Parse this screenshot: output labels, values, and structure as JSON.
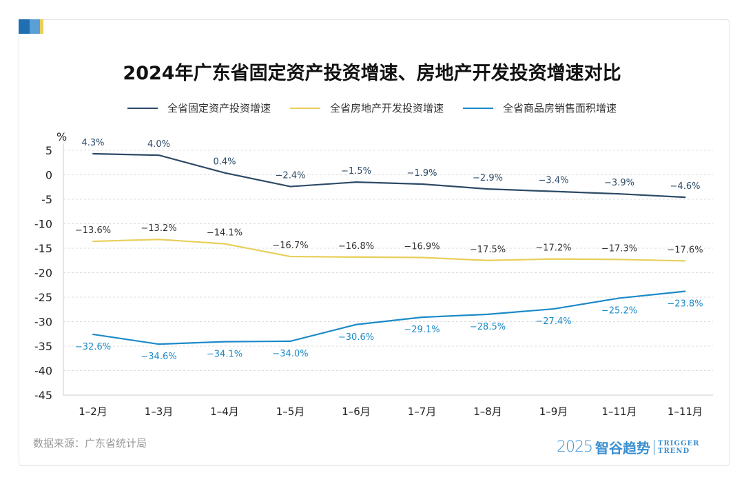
{
  "chart_data": {
    "type": "line",
    "title": "2024年广东省固定资产投资增速、房地产开发投资增速对比",
    "ylabel": "%",
    "xlabel": "",
    "ylim": [
      -45,
      5
    ],
    "yticks": [
      5,
      0,
      -5,
      -10,
      -15,
      -20,
      -25,
      -30,
      -35,
      -40,
      -45
    ],
    "grid": true,
    "legend_position": "top",
    "categories": [
      "1–2月",
      "1–3月",
      "1–4月",
      "1–5月",
      "1–6月",
      "1–7月",
      "1–8月",
      "1–9月",
      "1–11月",
      "1–11月"
    ],
    "series": [
      {
        "name": "全省固定资产投资增速",
        "color": "#2c4a66",
        "label_color": "#2c4a66",
        "values": [
          4.3,
          4.0,
          0.4,
          -2.4,
          -1.5,
          -1.9,
          -2.9,
          -3.4,
          -3.9,
          -4.6
        ],
        "labels": [
          "4.3%",
          "4.0%",
          "0.4%",
          "−2.4%",
          "−1.5%",
          "−1.9%",
          "−2.9%",
          "−3.4%",
          "−3.9%",
          "−4.6%"
        ]
      },
      {
        "name": "全省房地产开发投资增速",
        "color": "#e8cf5a",
        "label_color": "#333333",
        "values": [
          -13.6,
          -13.2,
          -14.1,
          -16.7,
          -16.8,
          -16.9,
          -17.5,
          -17.2,
          -17.3,
          -17.6
        ],
        "labels": [
          "−13.6%",
          "−13.2%",
          "−14.1%",
          "−16.7%",
          "−16.8%",
          "−16.9%",
          "−17.5%",
          "−17.2%",
          "−17.3%",
          "−17.6%"
        ]
      },
      {
        "name": "全省商品房销售面积增速",
        "color": "#1b8ac8",
        "label_color": "#1b8ac8",
        "values": [
          -32.6,
          -34.6,
          -34.1,
          -34.0,
          -30.6,
          -29.1,
          -28.5,
          -27.4,
          -25.2,
          -23.8
        ],
        "labels": [
          "−32.6%",
          "−34.6%",
          "−34.1%",
          "−34.0%",
          "−30.6%",
          "−29.1%",
          "−28.5%",
          "−27.4%",
          "−25.2%",
          "−23.8%"
        ]
      }
    ]
  },
  "source": "数据来源：广东省统计局",
  "logo": {
    "year": "2025",
    "cn": "智谷趋势",
    "en1": "TRIGGER",
    "en2": "TREND"
  },
  "badge_colors": [
    "#1f6fb2",
    "#4f97d0",
    "#e8cf5a"
  ]
}
